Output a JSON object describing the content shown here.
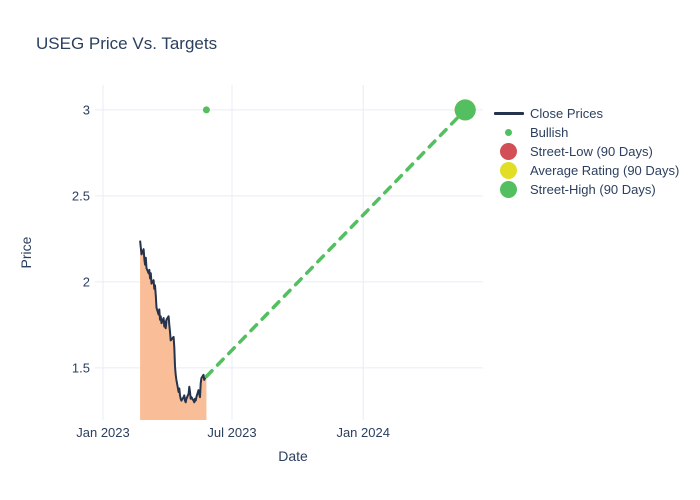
{
  "title": "USEG Price Vs. Targets",
  "colors": {
    "text": "#2b3f5f",
    "grid": "#e7ecf6",
    "close_line": "#25334d",
    "close_fill": "#f9bd97",
    "bullish_green": "#53bf60",
    "street_low_red": "#d24f58",
    "average_yellow": "#e2de26",
    "street_high_green": "#53bf60",
    "trend_green": "#53bf60"
  },
  "legend": {
    "items": [
      {
        "label": "Close Prices",
        "symbol": "line",
        "color": "#25334d"
      },
      {
        "label": "Bullish",
        "symbol": "dot",
        "color": "#53bf60"
      },
      {
        "label": "Street-Low (90 Days)",
        "symbol": "circle",
        "color": "#d24f58"
      },
      {
        "label": "Average Rating (90 Days)",
        "symbol": "circle",
        "color": "#e2de26"
      },
      {
        "label": "Street-High (90 Days)",
        "symbol": "circle",
        "color": "#53bf60"
      }
    ]
  },
  "chart_data": {
    "type": "line",
    "title": "USEG Price Vs. Targets",
    "xlabel": "Date",
    "ylabel": "Price",
    "grid": true,
    "legend_position": "right",
    "x_range": [
      "2023-01-01",
      "2024-06-17"
    ],
    "y_range": [
      1.197,
      3.145
    ],
    "x_ticks": [
      {
        "label": "Jan 2023",
        "date": "2023-01-01"
      },
      {
        "label": "Jul 2023",
        "date": "2023-07-01"
      },
      {
        "label": "Jan 2024",
        "date": "2024-01-01"
      }
    ],
    "y_ticks": [
      1.5,
      2,
      2.5,
      3
    ],
    "series": [
      {
        "name": "Close Prices",
        "type": "line-filled",
        "color": "#25334d",
        "fill_color": "#f9bd97",
        "dates": [
          "2023-02-22",
          "2023-02-23",
          "2023-02-24",
          "2023-02-27",
          "2023-02-28",
          "2023-03-01",
          "2023-03-02",
          "2023-03-03",
          "2023-03-06",
          "2023-03-07",
          "2023-03-08",
          "2023-03-09",
          "2023-03-10",
          "2023-03-13",
          "2023-03-14",
          "2023-03-15",
          "2023-03-16",
          "2023-03-17",
          "2023-03-20",
          "2023-03-21",
          "2023-03-22",
          "2023-03-23",
          "2023-03-24",
          "2023-03-27",
          "2023-03-28",
          "2023-03-29",
          "2023-03-30",
          "2023-03-31",
          "2023-04-03",
          "2023-04-04",
          "2023-04-05",
          "2023-04-06",
          "2023-04-10",
          "2023-04-11",
          "2023-04-12",
          "2023-04-13",
          "2023-04-14",
          "2023-04-17",
          "2023-04-18",
          "2023-04-19",
          "2023-04-20",
          "2023-04-21",
          "2023-04-24",
          "2023-04-25",
          "2023-04-26",
          "2023-04-27",
          "2023-04-28",
          "2023-05-01",
          "2023-05-02",
          "2023-05-03",
          "2023-05-04",
          "2023-05-05",
          "2023-05-08",
          "2023-05-09",
          "2023-05-10",
          "2023-05-11",
          "2023-05-12",
          "2023-05-15",
          "2023-05-16",
          "2023-05-17",
          "2023-05-18",
          "2023-05-19",
          "2023-05-22",
          "2023-05-23",
          "2023-05-24",
          "2023-05-25",
          "2023-05-26"
        ],
        "values": [
          2.24,
          2.2,
          2.16,
          2.19,
          2.13,
          2.1,
          2.14,
          2.08,
          2.05,
          2.07,
          2.02,
          2.05,
          1.99,
          2.01,
          1.96,
          1.98,
          1.92,
          1.85,
          1.81,
          1.84,
          1.78,
          1.8,
          1.76,
          1.79,
          1.74,
          1.77,
          1.73,
          1.78,
          1.8,
          1.75,
          1.71,
          1.66,
          1.68,
          1.62,
          1.51,
          1.46,
          1.43,
          1.36,
          1.38,
          1.34,
          1.32,
          1.31,
          1.33,
          1.34,
          1.31,
          1.3,
          1.32,
          1.35,
          1.39,
          1.36,
          1.32,
          1.33,
          1.31,
          1.3,
          1.32,
          1.31,
          1.33,
          1.37,
          1.35,
          1.33,
          1.41,
          1.44,
          1.46,
          1.43,
          1.44,
          1.45,
          1.45
        ]
      },
      {
        "name": "Bullish",
        "type": "scatter",
        "color": "#53bf60",
        "marker_radius": 3.5,
        "points": [
          {
            "date": "2023-05-26",
            "value": 3.0
          }
        ]
      },
      {
        "name": "Street-Low (90 Days)",
        "type": "scatter",
        "color": "#d24f58",
        "marker_radius": 10.5,
        "points": [
          {
            "date": "2024-05-23",
            "value": 3.0
          }
        ]
      },
      {
        "name": "Average Rating (90 Days)",
        "type": "scatter",
        "color": "#e2de26",
        "marker_radius": 10.5,
        "points": [
          {
            "date": "2024-05-23",
            "value": 3.0
          }
        ]
      },
      {
        "name": "Street-High (90 Days)",
        "type": "scatter",
        "color": "#53bf60",
        "marker_radius": 10.5,
        "points": [
          {
            "date": "2024-05-23",
            "value": 3.0
          }
        ]
      },
      {
        "name": "Projection",
        "type": "dashed-line",
        "color": "#53bf60",
        "points": [
          {
            "date": "2023-05-26",
            "value": 1.45
          },
          {
            "date": "2024-05-23",
            "value": 3.0
          }
        ]
      }
    ]
  }
}
